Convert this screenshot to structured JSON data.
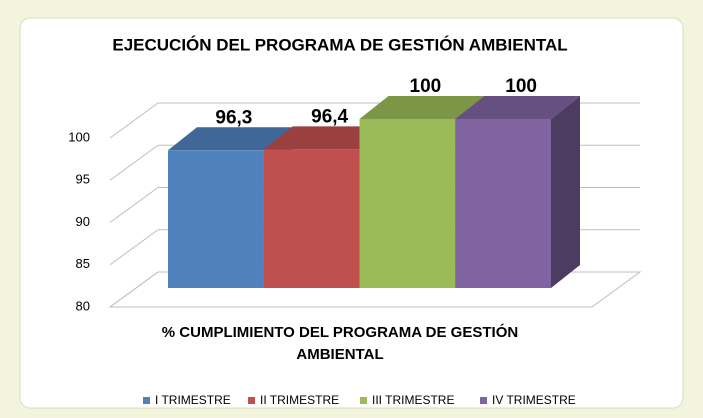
{
  "chart_data": {
    "type": "bar3d",
    "title": "EJECUCIÓN DEL PROGRAMA DE GESTIÓN AMBIENTAL",
    "x_label": "% CUMPLIMIENTO DEL PROGRAMA DE GESTIÓN AMBIENTAL",
    "series": [
      {
        "name": "I TRIMESTRE",
        "color": "#4f81bd",
        "values": [
          96.3
        ],
        "value_labels": [
          "96,3"
        ]
      },
      {
        "name": "II TRIMESTRE",
        "color": "#c0504d",
        "values": [
          96.4
        ],
        "value_labels": [
          "96,4"
        ]
      },
      {
        "name": "III TRIMESTRE",
        "color": "#9bbb59",
        "values": [
          100
        ],
        "value_labels": [
          "100"
        ]
      },
      {
        "name": "IV TRIMESTRE",
        "color": "#8064a2",
        "values": [
          100
        ],
        "value_labels": [
          "100"
        ]
      }
    ],
    "ylim": [
      80,
      100
    ],
    "yticks": [
      80,
      85,
      90,
      95,
      100
    ],
    "grid": true,
    "legend": "bottom"
  }
}
